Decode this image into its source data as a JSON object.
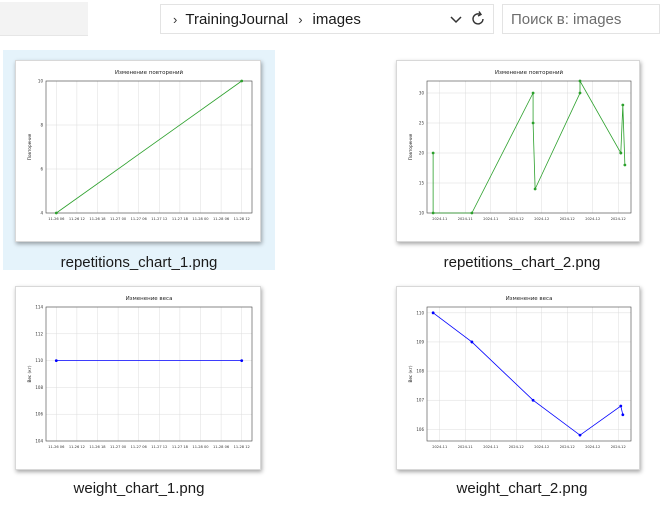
{
  "address_bar": {
    "path": [
      "TrainingJournal",
      "images"
    ]
  },
  "search": {
    "placeholder": "Поиск в: images"
  },
  "icons": {
    "refresh": "refresh-icon",
    "dropdown": "chevron-down-icon",
    "separator": "chevron-right-icon"
  },
  "files": [
    {
      "name": "repetitions_chart_1.png",
      "selected": true,
      "chart_data": {
        "type": "line",
        "title": "Изменение повторений",
        "ylabel": "Повторения",
        "xlabel": "",
        "color": "#2ca02c",
        "ylim": [
          4,
          10
        ],
        "yticks": [
          4,
          6,
          8,
          10
        ],
        "xticklabels": [
          "11-26 06",
          "11-26 12",
          "11-26 18",
          "11-27 00",
          "11-27 06",
          "11-27 12",
          "11-27 18",
          "11-28 00",
          "11-28 06",
          "11-28 12"
        ],
        "x": [
          0.05,
          0.95
        ],
        "values": [
          4,
          10
        ]
      }
    },
    {
      "name": "repetitions_chart_2.png",
      "selected": false,
      "chart_data": {
        "type": "line",
        "title": "Изменение повторений",
        "ylabel": "Повторения",
        "xlabel": "",
        "color": "#2ca02c",
        "ylim": [
          10,
          32
        ],
        "yticks": [
          10,
          15,
          20,
          25,
          30
        ],
        "xticklabels": [
          "2024-11",
          "2024-11",
          "2024-11",
          "2024-12",
          "2024-12",
          "2024-12",
          "2024-12",
          "2024-12"
        ],
        "x": [
          0.03,
          0.03,
          0.22,
          0.52,
          0.52,
          0.53,
          0.75,
          0.75,
          0.95,
          0.95,
          0.96,
          0.97
        ],
        "values": [
          20,
          10,
          10,
          30,
          25,
          14,
          30,
          32,
          20,
          20,
          28,
          18
        ]
      }
    },
    {
      "name": "weight_chart_1.png",
      "selected": false,
      "chart_data": {
        "type": "line",
        "title": "Изменение веса",
        "ylabel": "Вес (кг)",
        "xlabel": "",
        "color": "#0000ff",
        "ylim": [
          104,
          114
        ],
        "yticks": [
          104,
          106,
          108,
          110,
          112,
          114
        ],
        "xticklabels": [
          "11-26 06",
          "11-26 12",
          "11-26 18",
          "11-27 00",
          "11-27 06",
          "11-27 12",
          "11-27 18",
          "11-28 00",
          "11-28 06",
          "11-28 12"
        ],
        "x": [
          0.05,
          0.95
        ],
        "values": [
          110,
          110
        ]
      }
    },
    {
      "name": "weight_chart_2.png",
      "selected": false,
      "chart_data": {
        "type": "line",
        "title": "Изменение веса",
        "ylabel": "Вес (кг)",
        "xlabel": "",
        "color": "#0000ff",
        "ylim": [
          105.6,
          110.2
        ],
        "yticks": [
          106,
          107,
          108,
          109,
          110
        ],
        "xticklabels": [
          "2024-11",
          "2024-11",
          "2024-11",
          "2024-12",
          "2024-12",
          "2024-12",
          "2024-12",
          "2024-12"
        ],
        "x": [
          0.03,
          0.22,
          0.52,
          0.75,
          0.95,
          0.96
        ],
        "values": [
          110,
          109,
          107,
          105.8,
          106.8,
          106.5
        ]
      }
    }
  ]
}
